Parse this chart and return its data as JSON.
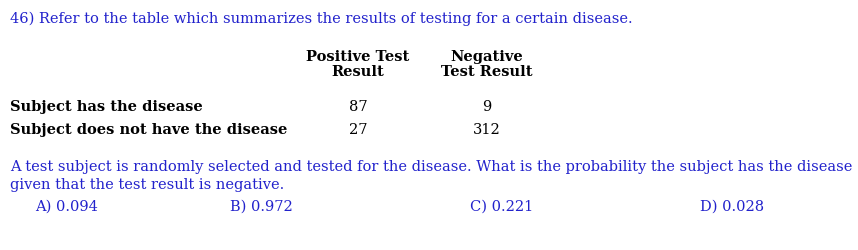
{
  "title": "46) Refer to the table which summarizes the results of testing for a certain disease.",
  "title_color": "#2222cc",
  "col_header1": "Positive Test",
  "col_header2": "Negative",
  "col_header1b": "Result",
  "col_header2b": "Test Result",
  "row1_label": "Subject has the disease",
  "row2_label": "Subject does not have the disease",
  "row1_val1": "87",
  "row1_val2": "9",
  "row2_val1": "27",
  "row2_val2": "312",
  "question_line1": "A test subject is randomly selected and tested for the disease. What is the probability the subject has the disease",
  "question_line2": "given that the test result is negative.",
  "question_color": "#2222cc",
  "answer_A": "A) 0.094",
  "answer_B": "B) 0.972",
  "answer_C": "C) 0.221",
  "answer_D": "D) 0.028",
  "answer_color": "#2222cc",
  "bg_color": "#ffffff",
  "font_size": 10.5
}
